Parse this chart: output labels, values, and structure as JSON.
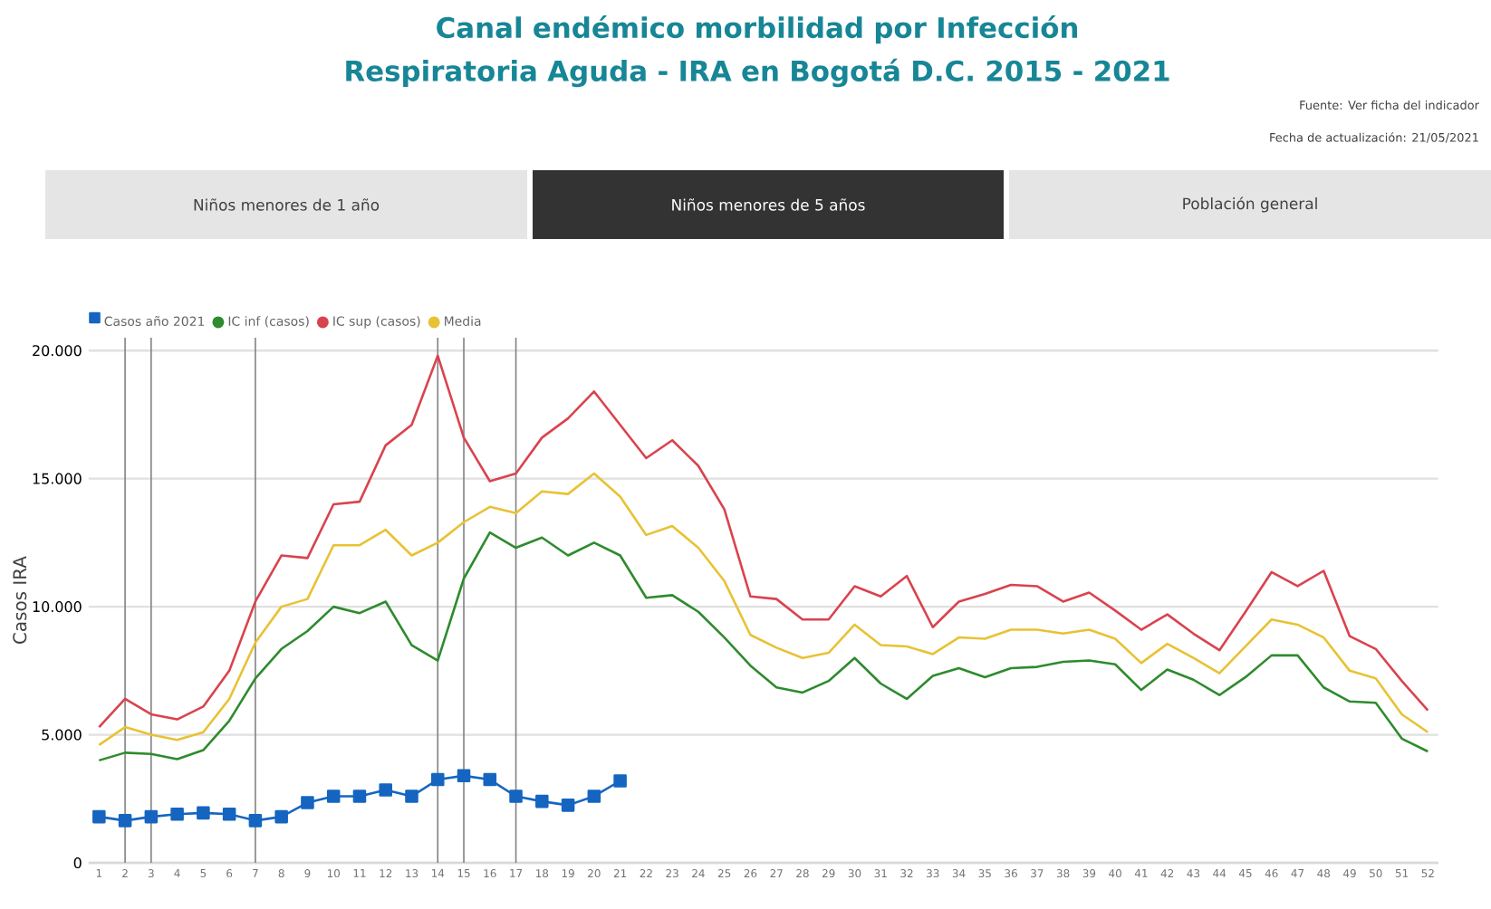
{
  "chart_data": {
    "type": "line",
    "title": "Canal endémico morbilidad por Infección Respiratoria Aguda - IRA en Bogotá D.C. 2015 - 2021",
    "annotations": [
      "Fuente: Ver ficha del indicador",
      "Fecha de actualización: 21/05/2021",
      "Niños menores de 1 año",
      "Niños menores de 5 años",
      "Población general"
    ],
    "ylabel": "Casos IRA",
    "categories": [
      "1",
      "2",
      "3",
      "4",
      "5",
      "6",
      "7",
      "8",
      "9",
      "10",
      "11",
      "12",
      "13",
      "14",
      "15",
      "16",
      "17",
      "18",
      "19",
      "20",
      "21",
      "22",
      "23",
      "24",
      "25",
      "26",
      "27",
      "28",
      "29",
      "30",
      "31",
      "32",
      "33",
      "34",
      "35",
      "36",
      "37",
      "38",
      "39",
      "40",
      "41",
      "42",
      "43",
      "44",
      "45",
      "46",
      "47",
      "48",
      "49",
      "50",
      "51",
      "52"
    ],
    "series": [
      {
        "name": "Casos año 2021",
        "color": "#1565c0",
        "marker": "square",
        "values": [
          1800,
          1650,
          1800,
          1900,
          1950,
          1900,
          1650,
          1800,
          2350,
          2600,
          2600,
          2850,
          2600,
          3250,
          3400,
          3250,
          2600,
          2400,
          2250,
          2600,
          3200,
          null,
          null,
          null,
          null,
          null,
          null,
          null,
          null,
          null,
          null,
          null,
          null,
          null,
          null,
          null,
          null,
          null,
          null,
          null,
          null,
          null,
          null,
          null,
          null,
          null,
          null,
          null,
          null,
          null,
          null,
          null
        ]
      },
      {
        "name": "IC inf (casos)",
        "color": "#2e8b2e",
        "marker": "none",
        "values": [
          4000,
          4300,
          4250,
          4050,
          4400,
          5550,
          7200,
          8350,
          9050,
          10000,
          9750,
          10200,
          8500,
          7900,
          11100,
          12900,
          12300,
          12700,
          12000,
          12500,
          12000,
          10350,
          10450,
          9800,
          8800,
          7700,
          6850,
          6650,
          7100,
          8000,
          7000,
          6400,
          7300,
          7600,
          7250,
          7600,
          7650,
          7850,
          7900,
          7750,
          6750,
          7550,
          7150,
          6550,
          7250,
          8100,
          8100,
          6850,
          6300,
          6250,
          4850,
          4350
        ]
      },
      {
        "name": "IC sup (casos)",
        "color": "#d9434e",
        "marker": "none",
        "values": [
          5300,
          6400,
          5800,
          5600,
          6100,
          7500,
          10200,
          12000,
          11900,
          14000,
          14100,
          16300,
          17100,
          19800,
          16600,
          14900,
          15200,
          16600,
          17350,
          18400,
          17100,
          15800,
          16500,
          15500,
          13800,
          10400,
          10300,
          9500,
          9500,
          10800,
          10400,
          11200,
          9200,
          10200,
          10500,
          10850,
          10800,
          10200,
          10550,
          9850,
          9100,
          9700,
          8950,
          8300,
          9800,
          11350,
          10800,
          11400,
          8850,
          8350,
          7100,
          5950
        ]
      },
      {
        "name": "Media",
        "color": "#e8c234",
        "marker": "none",
        "values": [
          4600,
          5300,
          5000,
          4800,
          5100,
          6400,
          8600,
          10000,
          10300,
          12400,
          12400,
          13000,
          12000,
          12500,
          13300,
          13900,
          13650,
          14500,
          14400,
          15200,
          14300,
          12800,
          13150,
          12300,
          11000,
          8900,
          8400,
          8000,
          8200,
          9300,
          8500,
          8450,
          8150,
          8800,
          8750,
          9100,
          9100,
          8950,
          9100,
          8750,
          7800,
          8550,
          8000,
          7400,
          8450,
          9500,
          9300,
          8800,
          7500,
          7200,
          5800,
          5100
        ]
      }
    ],
    "ylim": [
      0,
      20500
    ],
    "yticks": [
      {
        "value": 0,
        "label": "0"
      },
      {
        "value": 5000,
        "label": "5.000"
      },
      {
        "value": 10000,
        "label": "10.000"
      },
      {
        "value": 15000,
        "label": "15.000"
      },
      {
        "value": 20000,
        "label": "20.000"
      }
    ],
    "grid": "y",
    "legend": "top left",
    "ref_lines": [
      {
        "axis": "x",
        "value": "2",
        "color": "#808080"
      },
      {
        "axis": "x",
        "value": "3",
        "color": "#808080"
      },
      {
        "axis": "x",
        "value": "7",
        "color": "#808080"
      },
      {
        "axis": "x",
        "value": "14",
        "color": "#808080"
      },
      {
        "axis": "x",
        "value": "15",
        "color": "#808080"
      },
      {
        "axis": "x",
        "value": "17",
        "color": "#808080"
      }
    ]
  }
}
